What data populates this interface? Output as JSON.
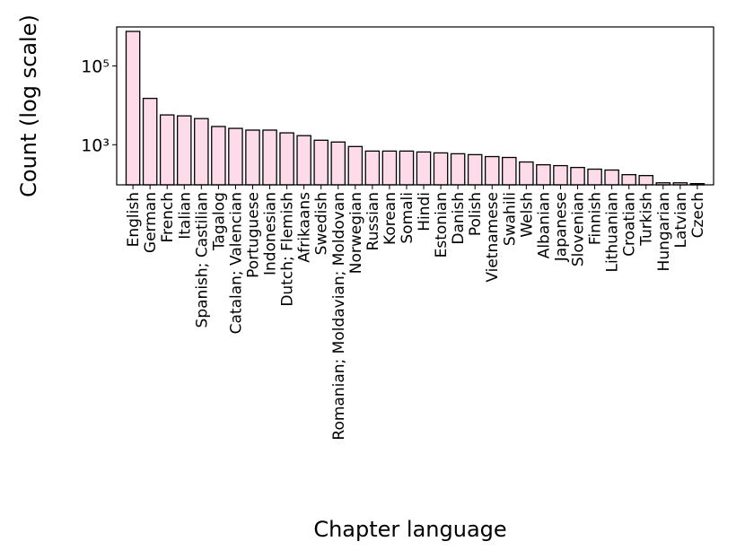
{
  "chart_data": {
    "type": "bar",
    "x_label": "Chapter language",
    "y_label": "Count (log scale)",
    "log_scale": true,
    "color": "#fddbe8",
    "categories": [
      "English",
      "German",
      "French",
      "Italian",
      "Spanish; Castilian",
      "Tagalog",
      "Catalan; Valencian",
      "Portuguese",
      "Indonesian",
      "Dutch; Flemish",
      "Afrikaans",
      "Swedish",
      "Romanian; Moldavian; Moldovan",
      "Norwegian",
      "Russian",
      "Korean",
      "Somali",
      "Hindi",
      "Estonian",
      "Danish",
      "Polish",
      "Vietnamese",
      "Swahili",
      "Welsh",
      "Albanian",
      "Japanese",
      "Slovenian",
      "Finnish",
      "Lithuanian",
      "Croatian",
      "Turkish",
      "Hungarian",
      "Latvian",
      "Czech"
    ],
    "values": [
      750000,
      15000,
      5700,
      5400,
      4600,
      2900,
      2600,
      2350,
      2350,
      2000,
      1700,
      1300,
      1170,
      900,
      690,
      690,
      690,
      655,
      620,
      590,
      560,
      500,
      475,
      365,
      310,
      295,
      265,
      240,
      228,
      174,
      165,
      108,
      108,
      103
    ],
    "ylim": [
      96,
      975000
    ],
    "yticks": [
      {
        "value": 1000,
        "label": "10³"
      },
      {
        "value": 100000,
        "label": "10⁵"
      }
    ]
  }
}
